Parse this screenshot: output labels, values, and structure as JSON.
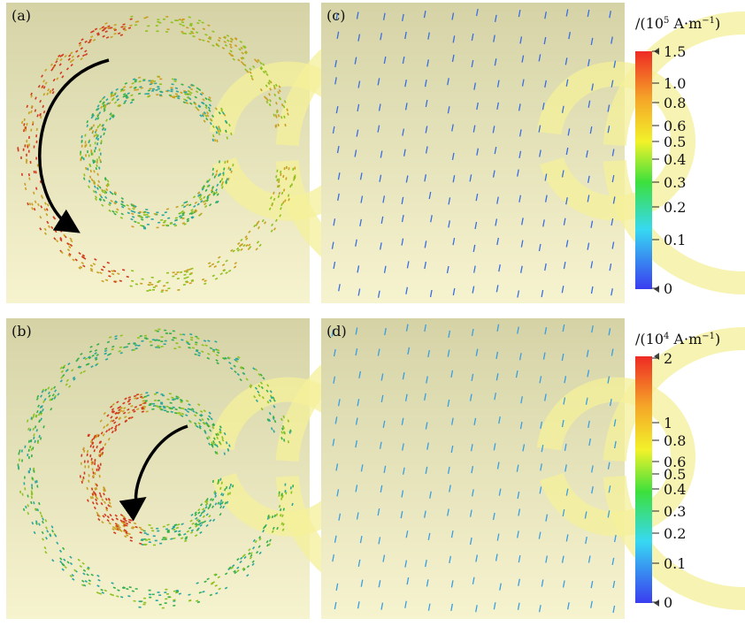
{
  "panels": [
    {
      "label": "(a)"
    },
    {
      "label": "(c)"
    },
    {
      "label": "(b)"
    },
    {
      "label": "(d)"
    }
  ],
  "colorbars": [
    {
      "unit": {
        "prefix": "/(10",
        "exp": "5",
        "unit": " A·m",
        "unit_exp": "−1",
        "suffix": ")"
      },
      "ticks": [
        "1.5",
        "1.0",
        "0.8",
        "0.6",
        "0.5",
        "0.4",
        "0.3",
        "0.2",
        "0.1",
        "0"
      ]
    },
    {
      "unit": {
        "prefix": "/(10",
        "exp": "4",
        "unit": " A·m",
        "unit_exp": "−1",
        "suffix": ")"
      },
      "ticks": [
        "2",
        "1",
        "0.8",
        "0.6",
        "0.5",
        "0.4",
        "0.3",
        "0.2",
        "0.1",
        "0"
      ]
    }
  ]
}
